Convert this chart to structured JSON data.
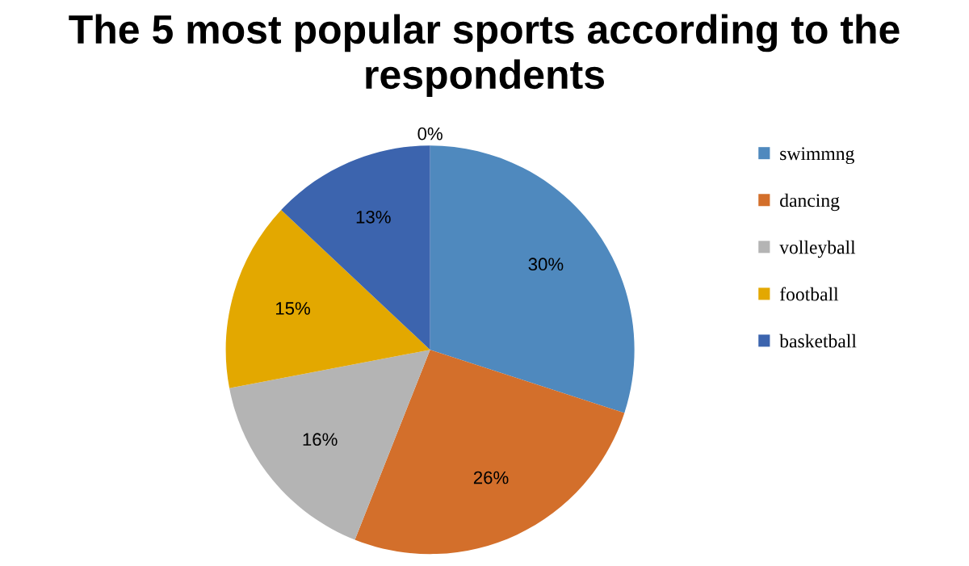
{
  "chart_data": {
    "type": "pie",
    "title": "The 5 most popular sports according to the respondents",
    "categories": [
      "swimmng",
      "dancing",
      "volleyball",
      "football",
      "basketball",
      null
    ],
    "values": [
      30,
      26,
      16,
      15,
      13,
      0
    ],
    "colors": [
      "#4f89be",
      "#d36f2b",
      "#b4b4b4",
      "#e3a800",
      "#3c64ae",
      "#7f7f7f"
    ],
    "value_labels": [
      "30%",
      "26%",
      "16%",
      "15%",
      "13%",
      "0%"
    ],
    "legend": "right"
  }
}
